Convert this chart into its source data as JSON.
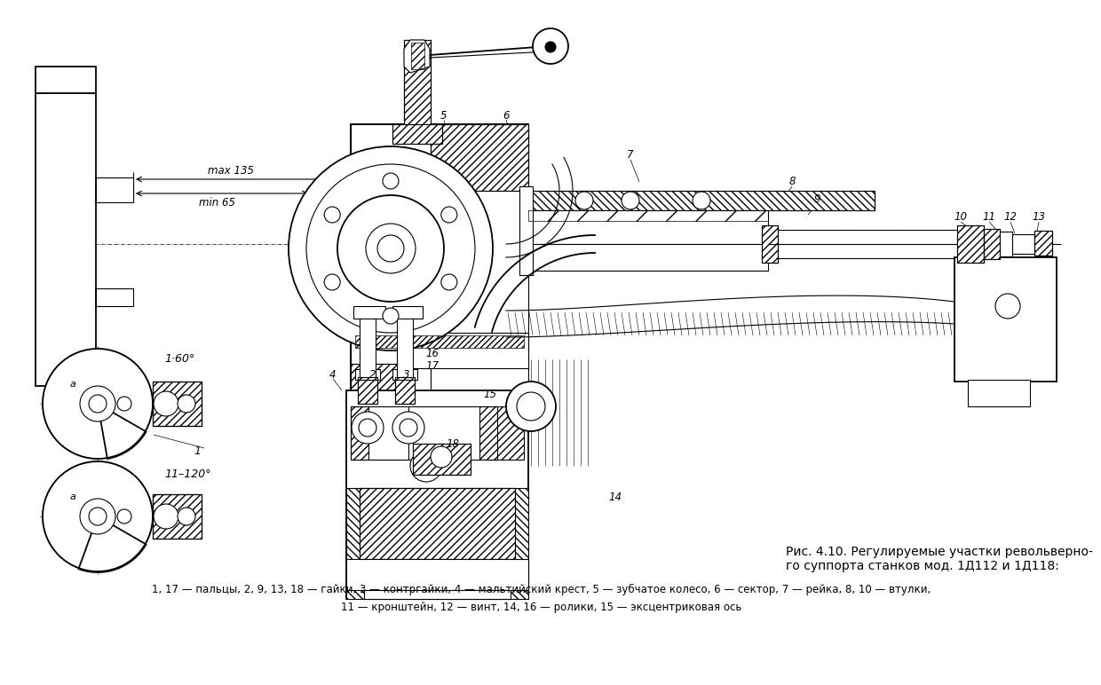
{
  "bg_color": "#ffffff",
  "line_color": "#000000",
  "fig_width": 12.0,
  "fig_height": 7.52,
  "caption_title": "Рис. 4.10. Регулируемые участки револьверно-\nго суппорта станков мод. 1Д112 и 1Д118:",
  "caption_line1": "1, 17 — пальцы, 2, 9, 13, 18 — гайки, 3 — контргайки, 4 — мальтийский крест, 5 — зубчатое колесо, 6 — сектор, 7 — рейка, 8, 10 — втулки,",
  "caption_line2": "11 — кронштейн, 12 — винт, 14, 16 — ролики, 15 — эксцентриковая ось",
  "label_1_60": "1·60°",
  "label_11_120": "11–120°",
  "label_max135": "max 135",
  "label_min65": "min 65",
  "lw_hair": 0.5,
  "lw_thin": 0.8,
  "lw_med": 1.3,
  "lw_thick": 2.0
}
